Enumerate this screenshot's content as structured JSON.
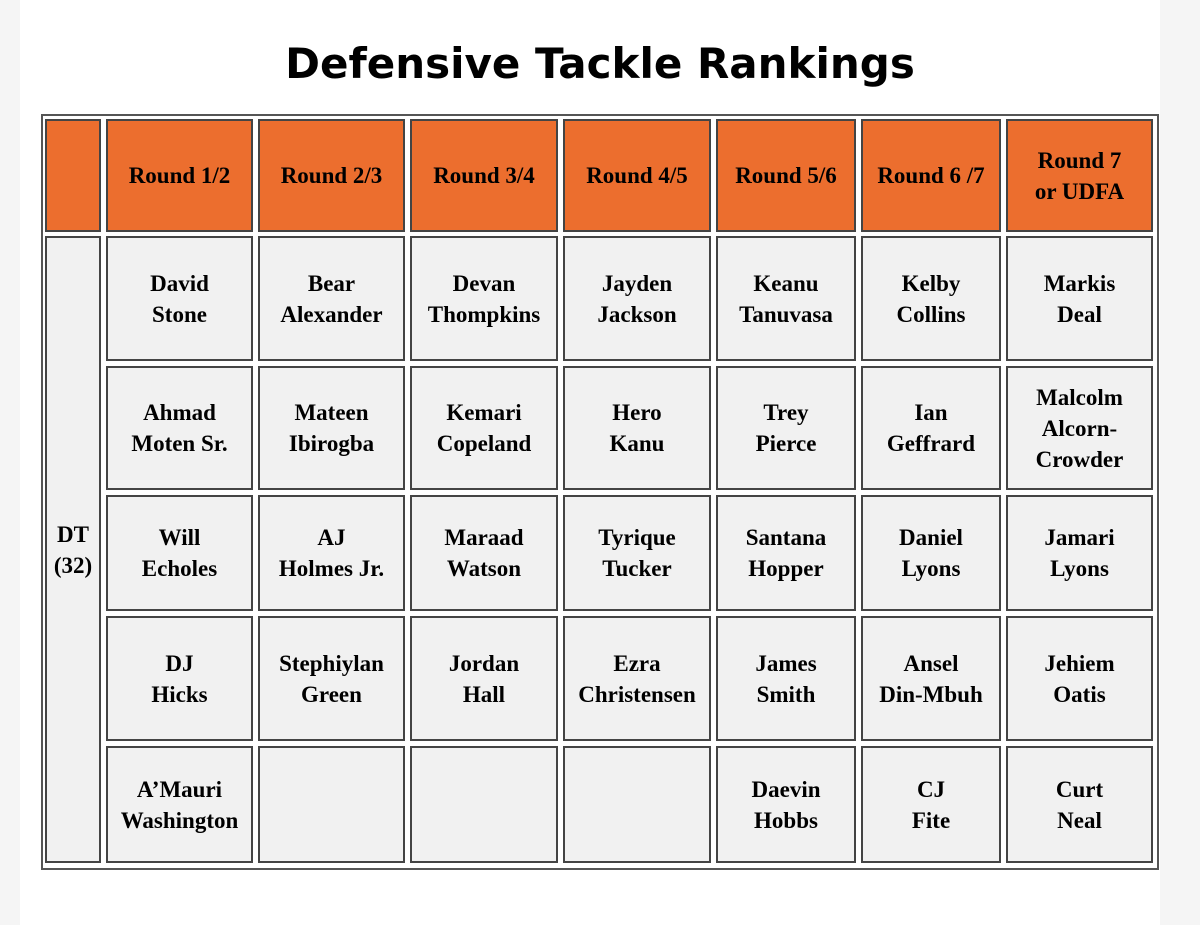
{
  "title": "Defensive Tackle Rankings",
  "table": {
    "corner": "",
    "position_label": "DT\n(32)",
    "columns": [
      "Round 1/2",
      "Round 2/3",
      "Round 3/4",
      "Round 4/5",
      "Round 5/6",
      "Round 6 /7",
      "Round 7\nor UDFA"
    ],
    "rows": [
      [
        "David\nStone",
        "Bear\nAlexander",
        "Devan\nThompkins",
        "Jayden\nJackson",
        "Keanu\nTanuvasa",
        "Kelby\nCollins",
        "Markis\nDeal"
      ],
      [
        "Ahmad\nMoten Sr.",
        "Mateen\nIbirogba",
        "Kemari\nCopeland",
        "Hero\nKanu",
        "Trey\nPierce",
        "Ian\nGeffrard",
        "Malcolm\nAlcorn-\nCrowder"
      ],
      [
        "Will\nEcholes",
        "AJ\nHolmes Jr.",
        "Maraad\nWatson",
        "Tyrique\nTucker",
        "Santana\nHopper",
        "Daniel\nLyons",
        "Jamari\nLyons"
      ],
      [
        "DJ\nHicks",
        "Stephiylan\nGreen",
        "Jordan\nHall",
        "Ezra\nChristensen",
        "James\nSmith",
        "Ansel\nDin-Mbuh",
        "Jehiem\nOatis"
      ],
      [
        "A’Mauri\nWashington",
        "",
        "",
        "",
        "Daevin\nHobbs",
        "CJ\nFite",
        "Curt\nNeal"
      ]
    ]
  },
  "colors": {
    "header_bg": "#ec6e2e",
    "cell_bg": "#f1f1f1",
    "border": "#444444"
  }
}
